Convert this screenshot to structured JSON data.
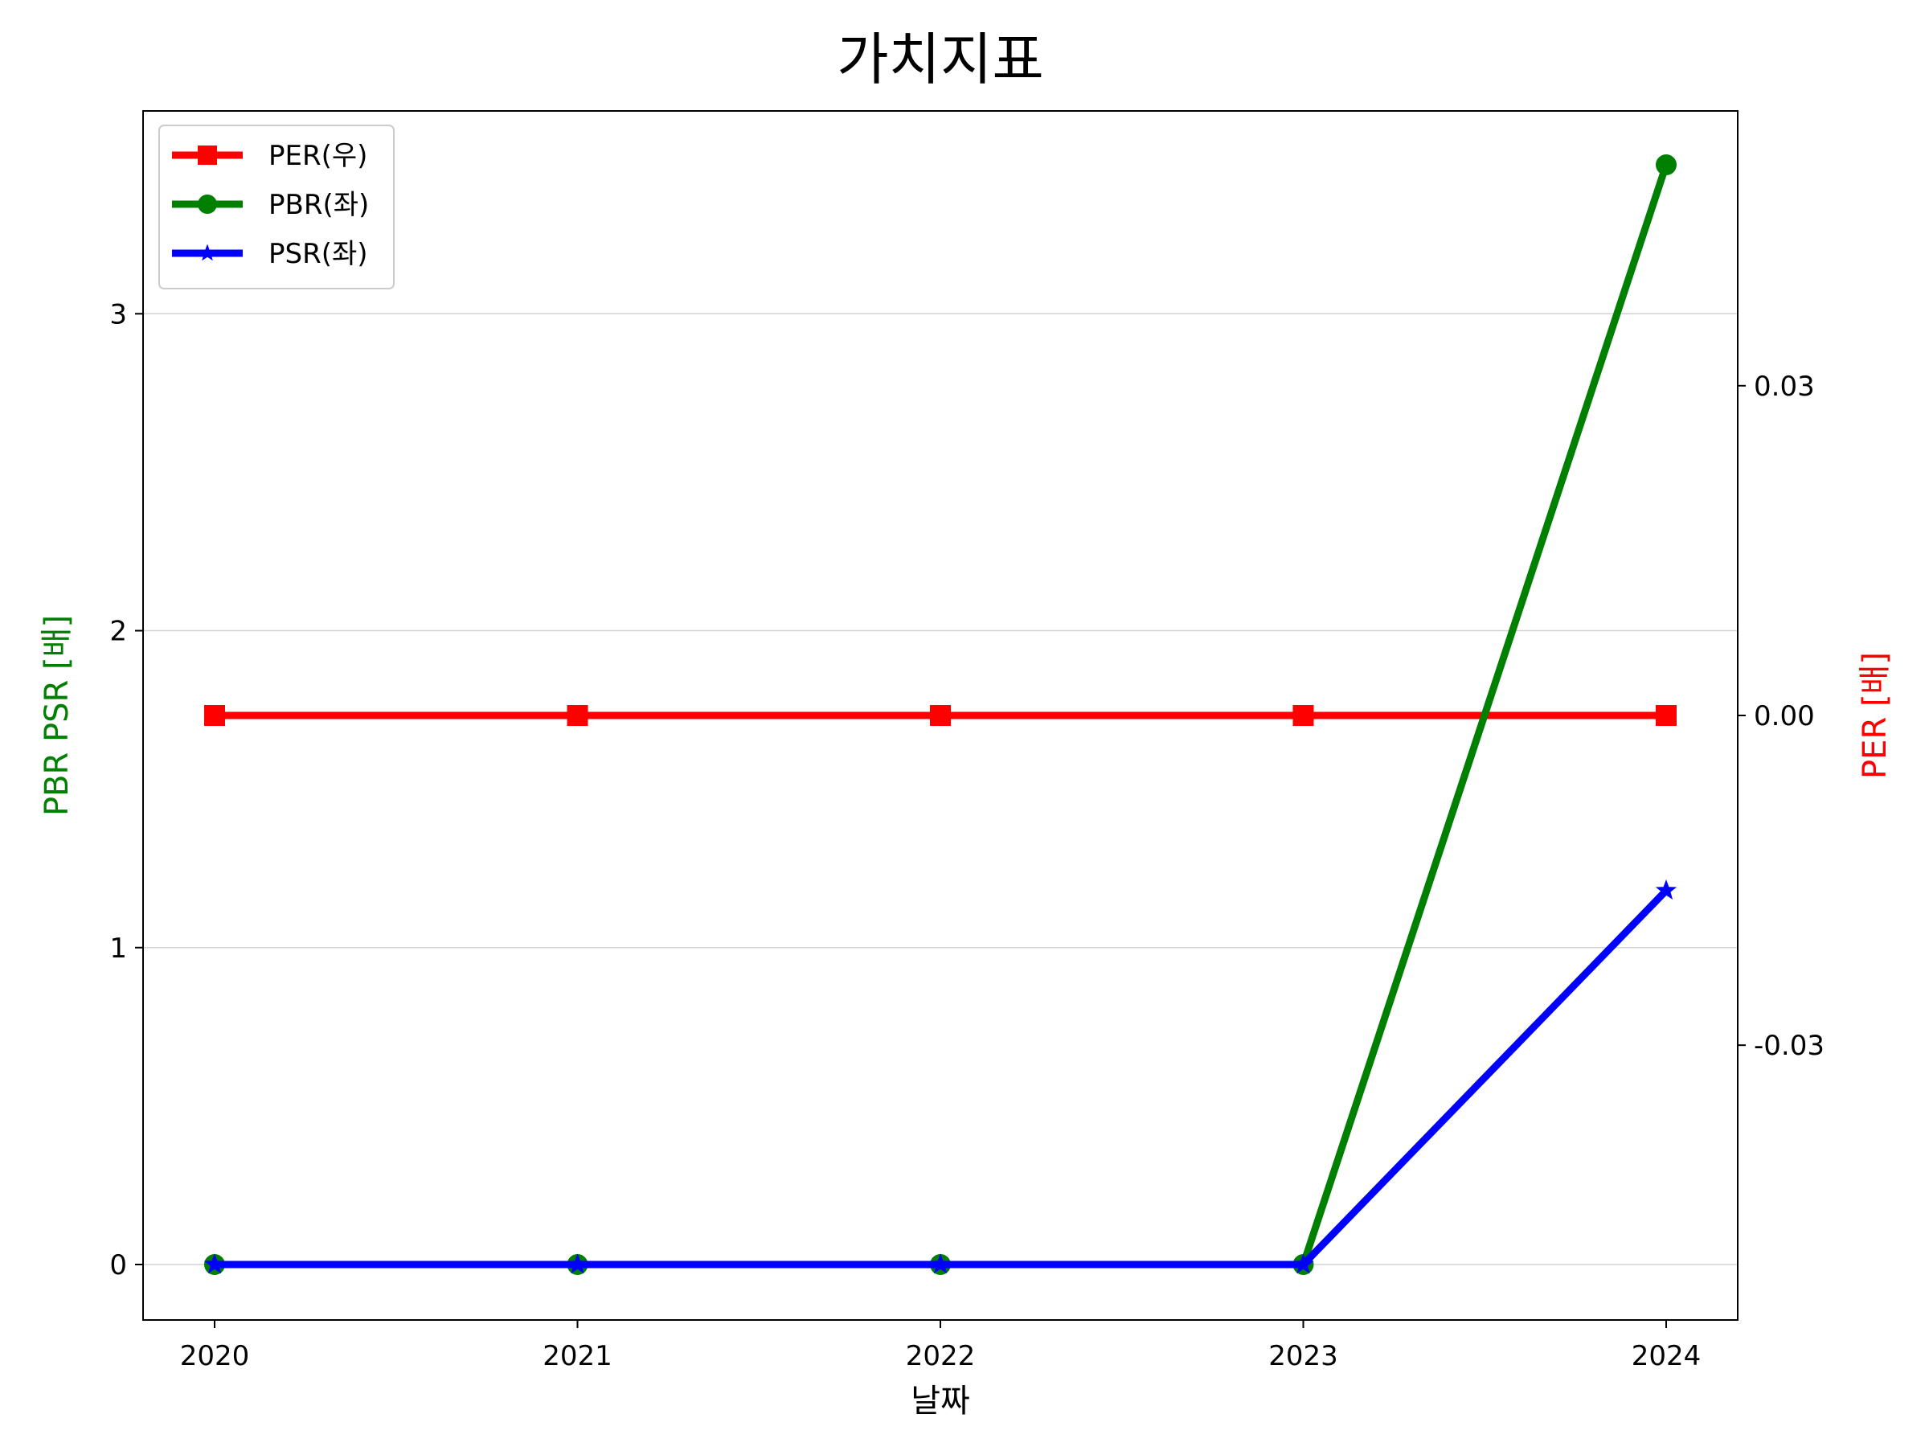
{
  "chart_data": {
    "type": "line",
    "title": "가치지표",
    "xlabel": "날짜",
    "ylabel_left": "PBR PSR [배]",
    "ylabel_right": "PER [배]",
    "categories": [
      "2020",
      "2021",
      "2022",
      "2023",
      "2024"
    ],
    "ylim_left": [
      -0.175,
      3.64
    ],
    "yticks_left": [
      0,
      1,
      2,
      3
    ],
    "yticks_left_labels": [
      "0",
      "1",
      "2",
      "3"
    ],
    "ylim_right": [
      -0.055,
      0.055
    ],
    "yticks_right": [
      0.03,
      0.0,
      -0.03
    ],
    "yticks_right_labels": [
      "0.03",
      "0.00",
      "-0.03"
    ],
    "grid": "horizontal (left axis)",
    "legend_position": "upper-left",
    "series": [
      {
        "name": "PER(우)",
        "axis": "right",
        "color": "#ff0000",
        "marker": "square",
        "values": [
          0,
          0,
          0,
          0,
          0
        ]
      },
      {
        "name": "PBR(좌)",
        "axis": "left",
        "color": "#008000",
        "marker": "circle",
        "values": [
          0,
          0,
          0,
          0,
          3.47
        ]
      },
      {
        "name": "PSR(좌)",
        "axis": "left",
        "color": "#0000ff",
        "marker": "star",
        "values": [
          0,
          0,
          0,
          0,
          1.18
        ]
      }
    ]
  }
}
